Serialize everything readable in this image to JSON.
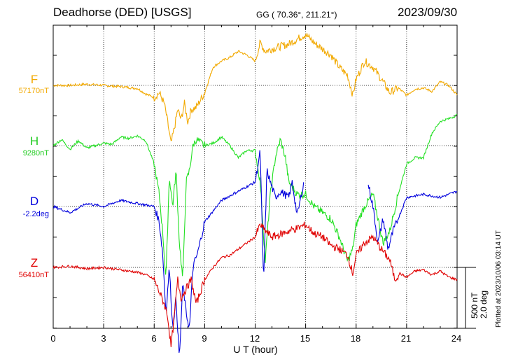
{
  "header": {
    "station": "Deadhorse (DED)  [USGS]",
    "coords": "GG ( 70.36°, 211.21°)",
    "date": "2023/09/30"
  },
  "colors": {
    "F": "#f2a900",
    "H": "#22e022",
    "D": "#0000dd",
    "Z": "#e00000"
  },
  "chart_data": {
    "type": "line",
    "title": "Deadhorse (DED)  [USGS]",
    "xlabel": "U T (hour)",
    "ylabel": "",
    "xlim": [
      0,
      24
    ],
    "x_ticks": [
      "0",
      "3",
      "6",
      "9",
      "12",
      "15",
      "18",
      "21",
      "24"
    ],
    "grid": true,
    "scale": {
      "nT": "500 nT",
      "deg": "2.0 deg"
    },
    "plotted": "Plotted at 2023/10/06 03:14 UT",
    "series": [
      {
        "name": "F",
        "baseline": "57170nT",
        "unit": "nT",
        "x": [
          0,
          1,
          2,
          3,
          4,
          5,
          5.5,
          6,
          6.3,
          6.6,
          6.8,
          7,
          7.2,
          7.4,
          7.6,
          7.8,
          8,
          8.2,
          8.5,
          9,
          9.5,
          10,
          10.5,
          11,
          11.5,
          12,
          12.3,
          12.6,
          13,
          13.5,
          14,
          14.5,
          15,
          15.5,
          16,
          16.5,
          17,
          17.5,
          17.8,
          18,
          18.5,
          19,
          19.5,
          20,
          20.5,
          21,
          21.5,
          22,
          22.5,
          23,
          23.5,
          24
        ],
        "y": [
          0,
          0,
          10,
          0,
          -10,
          -25,
          -70,
          -100,
          -60,
          -150,
          -300,
          -480,
          -350,
          -200,
          -280,
          -150,
          -300,
          -200,
          -180,
          -60,
          150,
          200,
          230,
          280,
          250,
          200,
          350,
          280,
          300,
          320,
          340,
          380,
          420,
          350,
          300,
          250,
          150,
          80,
          -80,
          50,
          200,
          150,
          50,
          -60,
          -20,
          -80,
          -30,
          -20,
          -50,
          30,
          0,
          -80
        ]
      },
      {
        "name": "H",
        "baseline": "9280nT",
        "unit": "nT",
        "x": [
          0,
          0.5,
          1,
          1.5,
          2,
          2.5,
          3,
          3.5,
          4,
          4.5,
          5,
          5.5,
          6,
          6.3,
          6.5,
          6.7,
          6.9,
          7.1,
          7.3,
          7.5,
          7.7,
          7.9,
          8.1,
          8.3,
          8.5,
          9,
          9.5,
          10,
          10.5,
          11,
          11.5,
          12,
          12.3,
          12.6,
          12.9,
          13.2,
          13.5,
          13.8,
          14,
          14.5,
          15,
          15.5,
          16,
          16.5,
          17,
          17.5,
          17.8,
          18,
          18.5,
          19,
          19.3,
          19.6,
          20,
          20.5,
          21,
          21.5,
          22,
          22.5,
          23,
          23.5,
          24
        ],
        "y": [
          0,
          50,
          -30,
          40,
          -20,
          0,
          20,
          10,
          70,
          60,
          80,
          40,
          -150,
          -400,
          -700,
          -1100,
          -250,
          -500,
          -200,
          -800,
          -1100,
          -300,
          -200,
          0,
          50,
          0,
          20,
          70,
          0,
          -100,
          -40,
          -40,
          -300,
          -950,
          -400,
          -100,
          50,
          -100,
          -300,
          -400,
          -400,
          -500,
          -550,
          -600,
          -750,
          -950,
          -850,
          -650,
          -500,
          -400,
          -600,
          -800,
          -700,
          -400,
          -150,
          -100,
          -100,
          100,
          200,
          220,
          250
        ]
      },
      {
        "name": "D",
        "baseline": "-2.2deg",
        "unit": "deg",
        "gaps": [
          [
            14.9,
            18.7
          ]
        ],
        "x": [
          0,
          1,
          2,
          3,
          4,
          5,
          6,
          6.3,
          6.5,
          6.7,
          6.9,
          7.1,
          7.3,
          7.5,
          7.7,
          7.9,
          8.1,
          8.3,
          8.6,
          9,
          10,
          11,
          12,
          12.3,
          12.5,
          12.7,
          12.9,
          13.2,
          13.5,
          14,
          14.2,
          14.5,
          14.9,
          18.7,
          19,
          19.3,
          19.6,
          19.9,
          20.2,
          20.5,
          21,
          22,
          23,
          24
        ],
        "y": [
          0,
          -0.2,
          0.1,
          0,
          0.2,
          0.1,
          0,
          -0.5,
          -1.5,
          -3.5,
          -2.0,
          -4.0,
          -3.0,
          -5.0,
          -2.5,
          -3.5,
          -4.0,
          -2.0,
          -1.5,
          -0.5,
          0.2,
          0.5,
          0.8,
          1.8,
          -2.5,
          1.2,
          0.8,
          0.3,
          0.5,
          0.3,
          0.8,
          -0.3,
          0.8,
          0.8,
          0,
          -1.2,
          -0.4,
          -1.4,
          -0.8,
          -0.4,
          0.3,
          0.4,
          0.3,
          0.5
        ]
      },
      {
        "name": "Z",
        "baseline": "56410nT",
        "unit": "nT",
        "x": [
          0,
          1,
          2,
          3,
          4,
          5,
          5.5,
          6,
          6.3,
          6.6,
          6.8,
          7,
          7.2,
          7.4,
          7.6,
          7.8,
          8,
          8.2,
          8.5,
          9,
          9.5,
          10,
          10.5,
          11,
          11.5,
          12,
          12.3,
          12.6,
          13,
          13.5,
          14,
          14.5,
          15,
          15.5,
          16,
          16.5,
          17,
          17.5,
          17.8,
          18,
          18.5,
          19,
          19.5,
          20,
          20.3,
          20.6,
          21,
          21.5,
          22,
          22.5,
          23,
          23.5,
          24
        ],
        "y": [
          0,
          10,
          -10,
          0,
          -20,
          -40,
          -60,
          -100,
          -200,
          -300,
          -400,
          -650,
          -400,
          -100,
          -250,
          -200,
          -150,
          -100,
          -300,
          -100,
          0,
          80,
          100,
          150,
          200,
          250,
          350,
          300,
          250,
          270,
          300,
          320,
          350,
          280,
          250,
          180,
          150,
          100,
          -50,
          100,
          200,
          250,
          150,
          60,
          -100,
          -50,
          -80,
          -30,
          -20,
          -60,
          -30,
          -80,
          -100
        ]
      }
    ]
  }
}
